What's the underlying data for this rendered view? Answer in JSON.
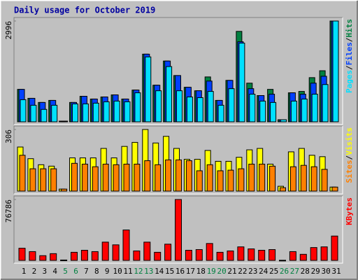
{
  "chart_data": [
    {
      "type": "bar",
      "title": "Daily usage for October 2019",
      "legend_separator": "/",
      "ylim": [
        0,
        2996
      ],
      "yticks": [
        2996
      ],
      "series": [
        {
          "name": "Hits",
          "color": "#008040",
          "values": [
            964,
            698,
            575,
            636,
            20,
            575,
            759,
            677,
            739,
            800,
            677,
            944,
            2011,
            1088,
            1806,
            1375,
            1026,
            923,
            1334,
            636,
            1231,
            2688,
            1149,
            780,
            964,
            62,
            862,
            903,
            1313,
            1518,
            2996
          ]
        },
        {
          "name": "Files",
          "color": "#0040ff",
          "values": [
            964,
            698,
            575,
            636,
            20,
            575,
            759,
            677,
            739,
            800,
            677,
            944,
            2011,
            1088,
            1806,
            1375,
            1026,
            923,
            1211,
            636,
            1231,
            2380,
            985,
            780,
            821,
            62,
            862,
            821,
            1149,
            1354,
            2996
          ]
        },
        {
          "name": "Pages",
          "color": "#00e0ff",
          "values": [
            657,
            492,
            369,
            492,
            20,
            533,
            533,
            554,
            595,
            616,
            595,
            862,
            1929,
            923,
            1642,
            923,
            739,
            718,
            903,
            492,
            985,
            2339,
            821,
            616,
            575,
            62,
            616,
            677,
            821,
            1108,
            2996
          ]
        }
      ]
    },
    {
      "type": "bar",
      "legend_separator": "/",
      "ylim": [
        0,
        306
      ],
      "yticks": [
        306
      ],
      "series": [
        {
          "name": "Visits",
          "color": "#ffff00",
          "values": [
            219,
            161,
            131,
            124,
            10,
            165,
            165,
            165,
            212,
            165,
            222,
            242,
            306,
            239,
            272,
            212,
            158,
            158,
            202,
            148,
            148,
            168,
            205,
            212,
            134,
            24,
            195,
            212,
            178,
            171,
            20
          ]
        },
        {
          "name": "Sites",
          "color": "#ff8000",
          "values": [
            178,
            111,
            111,
            111,
            10,
            138,
            134,
            121,
            134,
            131,
            134,
            134,
            151,
            131,
            155,
            155,
            151,
            101,
            131,
            101,
            104,
            111,
            134,
            134,
            124,
            17,
            121,
            128,
            121,
            108,
            20
          ]
        }
      ]
    },
    {
      "type": "bar",
      "ylim": [
        0,
        76786
      ],
      "yticks": [
        76786
      ],
      "categories": [
        "1",
        "2",
        "3",
        "4",
        "5",
        "6",
        "7",
        "8",
        "9",
        "10",
        "11",
        "12",
        "13",
        "14",
        "15",
        "16",
        "17",
        "18",
        "19",
        "20",
        "21",
        "22",
        "23",
        "24",
        "25",
        "26",
        "27",
        "28",
        "29",
        "30",
        "31"
      ],
      "category_colors": [
        "#000000",
        "#000000",
        "#000000",
        "#000000",
        "#008040",
        "#008040",
        "#000000",
        "#000000",
        "#000000",
        "#000000",
        "#000000",
        "#008040",
        "#008040",
        "#000000",
        "#000000",
        "#000000",
        "#000000",
        "#000000",
        "#008040",
        "#008040",
        "#000000",
        "#000000",
        "#000000",
        "#000000",
        "#000000",
        "#008040",
        "#008040",
        "#000000",
        "#000000",
        "#000000",
        "#000000"
      ],
      "series": [
        {
          "name": "KBytes",
          "color": "#ff0000",
          "values": [
            15357,
            11091,
            5972,
            8532,
            500,
            10238,
            12798,
            11091,
            23036,
            19622,
            38393,
            11944,
            23036,
            10238,
            20475,
            76786,
            12798,
            13650,
            21329,
            10238,
            11944,
            17063,
            14503,
            12798,
            13650,
            200,
            11091,
            7679,
            16210,
            17063,
            30714
          ]
        }
      ]
    }
  ]
}
